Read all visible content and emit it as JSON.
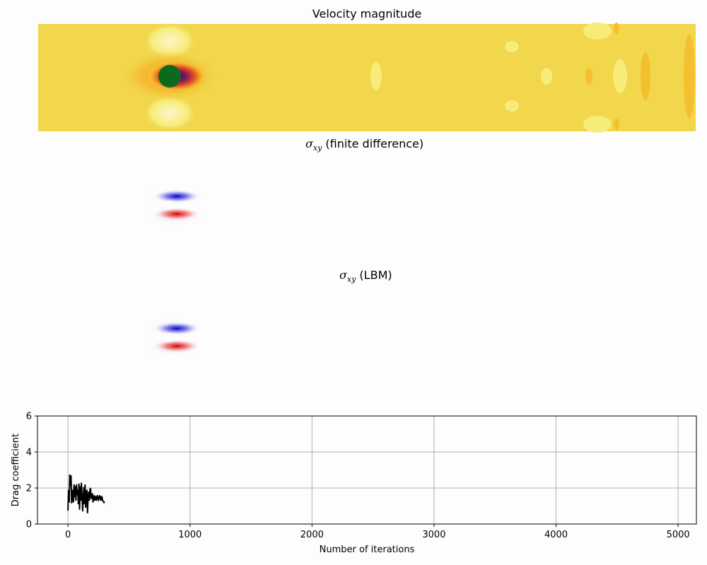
{
  "panels": {
    "velocity": {
      "title": "Velocity magnitude"
    },
    "fd": {
      "title_symbol": "σ",
      "title_sub": "xy",
      "title_rest": " (finite difference)"
    },
    "lbm": {
      "title_symbol": "σ",
      "title_sub": "xy",
      "title_rest": " (LBM)"
    }
  },
  "colors": {
    "velocity_field": "#f2d64b",
    "velocity_light": "#f7ec7a",
    "velocity_orange": "#f5a623",
    "obstacle": "#0a6b1c",
    "stress_positive": "#e00000",
    "stress_negative": "#0000d0",
    "line": "#000000",
    "grid": "#b0b0b0"
  },
  "chart_data": {
    "type": "line",
    "xlabel": "Number of iterations",
    "ylabel": "Drag coefficient",
    "xlim": [
      -250,
      5150
    ],
    "ylim": [
      0,
      6
    ],
    "xticks": [
      0,
      1000,
      2000,
      3000,
      4000,
      5000
    ],
    "yticks": [
      0,
      2,
      4,
      6
    ],
    "grid": true,
    "series": [
      {
        "x": [
          0,
          5,
          10,
          15,
          20,
          25,
          30,
          35,
          40,
          45,
          50,
          55,
          60,
          65,
          70,
          75,
          80,
          85,
          90,
          95,
          100,
          105,
          110,
          115,
          120,
          125,
          130,
          135,
          140,
          145,
          150,
          155,
          160,
          165,
          170,
          175,
          180,
          185,
          190,
          195,
          200,
          205,
          210,
          215,
          220,
          225,
          230,
          235,
          240,
          245,
          250,
          255,
          260,
          265,
          270,
          275,
          280,
          285,
          290,
          295,
          300
        ],
        "y": [
          0.75,
          1.9,
          1.2,
          2.75,
          2.1,
          2.7,
          1.15,
          1.5,
          1.9,
          1.2,
          2.2,
          1.5,
          2.1,
          1.3,
          2.2,
          1.6,
          1.9,
          1.1,
          2.25,
          0.8,
          2.1,
          1.3,
          2.3,
          1.6,
          0.7,
          1.4,
          2.05,
          1.1,
          2.2,
          0.9,
          1.6,
          1.9,
          0.6,
          1.5,
          1.8,
          1.3,
          1.9,
          2.0,
          1.4,
          1.6,
          1.7,
          1.2,
          1.5,
          1.6,
          1.3,
          1.55,
          1.45,
          1.3,
          1.6,
          1.5,
          1.35,
          1.45,
          1.6,
          1.4,
          1.3,
          1.55,
          1.45,
          1.3,
          1.25,
          1.2,
          1.25
        ]
      }
    ]
  }
}
